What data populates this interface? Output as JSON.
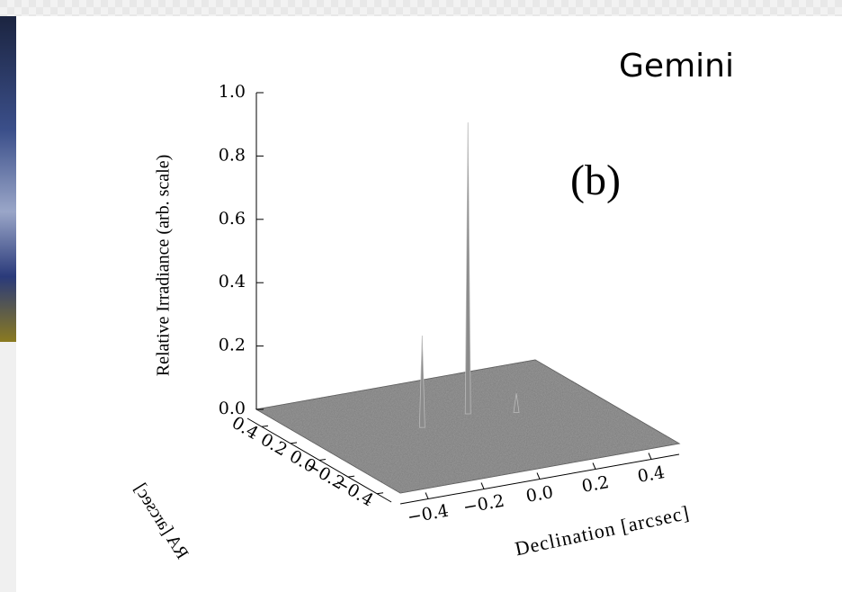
{
  "chart_data": {
    "type": "surface3d",
    "title": "Gemini",
    "panel_label": "(b)",
    "z_label": "Relative Irradiance (arb. scale)",
    "x_label": "Declination [arcsec]",
    "y_label": "RA [arcsec]",
    "x": [
      0.06,
      -0.13,
      0.2
    ],
    "y": [
      0.115,
      0.065,
      0.05
    ],
    "z": [
      0.92,
      0.29,
      0.06
    ],
    "color": "#8a8a8a",
    "floor_color": "#7a7a7a",
    "xlim": [
      -0.5,
      0.5
    ],
    "ylim": [
      -0.5,
      0.5
    ],
    "zlim": [
      0,
      1
    ],
    "xticks": [
      {
        "value": -0.4,
        "label": "−0.4"
      },
      {
        "value": -0.2,
        "label": "−0.2"
      },
      {
        "value": 0,
        "label": "0.0"
      },
      {
        "value": 0.2,
        "label": "0.2"
      },
      0.4
    ],
    "yticks": [
      0.4,
      0.2,
      {
        "value": 0,
        "label": "0.0"
      },
      {
        "value": -0.2,
        "label": "−0.2"
      },
      {
        "value": -0.4,
        "label": "−0.4"
      }
    ],
    "zticks": [
      {
        "value": 0,
        "label": "0.0"
      },
      0.2,
      0.4,
      0.6,
      0.8,
      {
        "value": 1,
        "label": "1.0"
      }
    ]
  }
}
